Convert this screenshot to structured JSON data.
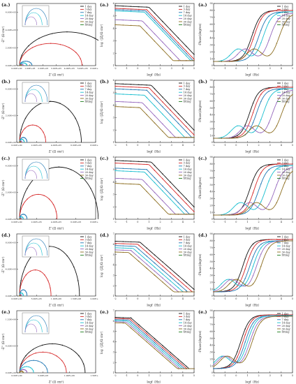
{
  "figure": {
    "legend_entries": [
      "1 day",
      "3 day",
      "7 day",
      "14 day",
      "20 day",
      "30 day",
      "fitting"
    ],
    "series_colors": [
      "#111111",
      "#d62728",
      "#1f77b4",
      "#17becf",
      "#9467bd",
      "#8c6d1f",
      "#1a7a1a"
    ],
    "row_labels": [
      "(a.)",
      "(b.)",
      "(c.)",
      "(d.)",
      "(e.)"
    ],
    "col_xlabels": [
      "Z' (Ω cm²)",
      "logf（Hz）",
      "logf（Hz）"
    ],
    "col_ylabels": [
      "-Z'' (Ω cm²)",
      "log（|Z|/Ω cm²）",
      "-Phase(degree)"
    ]
  },
  "chart_data": [
    {
      "id": "a-nyquist",
      "type": "line",
      "panel_label": "(a.)",
      "xlabel": "Z' (Ω cm²)",
      "ylabel": "-Z'' (Ω cm²)",
      "x_tick_labels": [
        "0.00E+00",
        "1.00E+05",
        "2.00E+05",
        "3.00E+05",
        "4.00E+05",
        "5.00E+05",
        "6.00E+05"
      ],
      "y_tick_labels": [
        "0.00E+00",
        "2.00E+05",
        "4.00E+05",
        "6.00E+05"
      ],
      "xlim": [
        0,
        600000
      ],
      "ylim": [
        0,
        700000
      ],
      "arcs_r": [
        380000,
        250000,
        50000,
        30000,
        15000,
        8000
      ],
      "legend": [
        "1 day",
        "3 day",
        "7 day",
        "14 day",
        "20 day",
        "30 day",
        "fitting"
      ]
    },
    {
      "id": "a-bode",
      "type": "line",
      "panel_label": "(a.)",
      "xlabel": "logf（Hz）",
      "ylabel": "log（|Z|/Ω cm²）",
      "x": [
        -2,
        -1,
        0,
        1,
        2,
        3,
        4,
        5
      ],
      "xlim": [
        -2,
        5
      ],
      "ylim": [
        1,
        6
      ],
      "plateau": [
        5.7,
        5.5,
        5.4,
        5.3,
        4.6,
        4.2
      ],
      "corner": [
        1.0,
        0.8,
        0.7,
        0.6,
        0.4,
        0.2
      ],
      "legend": [
        "1 day",
        "3 day",
        "7 day",
        "14 day",
        "20 day",
        "30 day",
        "fitting"
      ]
    },
    {
      "id": "a-phase",
      "type": "line",
      "panel_label": "(a.)",
      "xlabel": "logf（Hz）",
      "ylabel": "-Phase(degree)",
      "x": [
        -2,
        -1,
        0,
        1,
        2,
        3,
        4,
        5
      ],
      "xlim": [
        -2,
        5
      ],
      "ylim": [
        0,
        90
      ],
      "midpoint": [
        1.4,
        1.6,
        2.0,
        2.4,
        3.0,
        3.8
      ],
      "peak": [
        80,
        80,
        78,
        78,
        76,
        76
      ],
      "legend": [
        "1 day",
        "3 day",
        "7 day",
        "14 day",
        "20 day",
        "30 day",
        "fitting"
      ]
    },
    {
      "id": "b-nyquist",
      "type": "line",
      "panel_label": "(b.)",
      "xlabel": "Z' (Ω cm²)",
      "ylabel": "-Z'' (Ω cm²)",
      "x_tick_labels": [
        "0.00E+00",
        "2.00E+05",
        "4.00E+05",
        "6.00E+05",
        "8.00E+05"
      ],
      "y_tick_labels": [
        "0.00E+00",
        "2.00E+05",
        "4.00E+05"
      ],
      "xlim": [
        0,
        800000
      ],
      "ylim": [
        0,
        500000
      ],
      "arcs_r": [
        330000,
        140000,
        40000,
        25000,
        12000,
        6000
      ],
      "legend": [
        "1 day",
        "3 day",
        "7 day",
        "14 day",
        "20 day",
        "30 day",
        "fitting"
      ]
    },
    {
      "id": "b-bode",
      "type": "line",
      "panel_label": "(b.)",
      "xlabel": "logf（Hz）",
      "ylabel": "log（|Z|/Ω cm²）",
      "x": [
        -2,
        -1,
        0,
        1,
        2,
        3,
        4,
        5
      ],
      "xlim": [
        -2,
        5
      ],
      "ylim": [
        1,
        6
      ],
      "plateau": [
        5.6,
        5.4,
        5.2,
        4.8,
        4.2,
        3.8
      ],
      "corner": [
        1.2,
        1.0,
        0.8,
        0.6,
        0.4,
        0.2
      ],
      "legend": [
        "1 day",
        "3 day",
        "7 day",
        "14 day",
        "20 day",
        "30 day",
        "fitting"
      ]
    },
    {
      "id": "b-phase",
      "type": "line",
      "panel_label": "(b.)",
      "xlabel": "logf（Hz）",
      "ylabel": "-Phase(degree)",
      "x": [
        -2,
        -1,
        0,
        1,
        2,
        3,
        4,
        5
      ],
      "xlim": [
        -2,
        5
      ],
      "ylim": [
        0,
        90
      ],
      "midpoint": [
        1.2,
        1.5,
        1.8,
        2.4,
        3.2,
        4.0
      ],
      "peak": [
        80,
        80,
        78,
        78,
        76,
        74
      ],
      "legend": [
        "1 day",
        "3 day",
        "7 day",
        "14 day",
        "20 day",
        "30 day",
        "fitting"
      ]
    },
    {
      "id": "c-nyquist",
      "type": "line",
      "panel_label": "(c.)",
      "xlabel": "Z' (Ω cm²)",
      "ylabel": "-Z'' (Ω cm²)",
      "x_tick_labels": [
        "0.00E+00",
        "2.00E+05",
        "4.00E+05",
        "6.00E+05",
        "8.00E+05"
      ],
      "y_tick_labels": [
        "0.00E+00",
        "2.00E+05",
        "4.00E+05"
      ],
      "xlim": [
        0,
        800000
      ],
      "ylim": [
        0,
        500000
      ],
      "arcs_r": [
        420000,
        200000,
        40000,
        20000,
        10000,
        5000
      ],
      "legend": [
        "1 day",
        "3 day",
        "7 day",
        "14 day",
        "20 day",
        "30 day",
        "fitting"
      ]
    },
    {
      "id": "c-bode",
      "type": "line",
      "panel_label": "(c.)",
      "xlabel": "logf（Hz）",
      "ylabel": "log（|Z|/Ω cm²）",
      "x": [
        -2,
        -1,
        0,
        1,
        2,
        3,
        4,
        5
      ],
      "xlim": [
        -2,
        5
      ],
      "ylim": [
        1,
        6
      ],
      "plateau": [
        5.6,
        5.4,
        5.0,
        4.8,
        4.2,
        3.8
      ],
      "corner": [
        1.2,
        1.0,
        0.8,
        0.6,
        0.4,
        0.2
      ],
      "legend": [
        "1 day",
        "3 day",
        "7 day",
        "14 day",
        "20 day",
        "30 day",
        "fitting"
      ]
    },
    {
      "id": "c-phase",
      "type": "line",
      "panel_label": "(c.)",
      "xlabel": "logf（Hz）",
      "ylabel": "-Phase(degree)",
      "x": [
        -2,
        -1,
        0,
        1,
        2,
        3,
        4,
        5
      ],
      "xlim": [
        -2,
        5
      ],
      "ylim": [
        0,
        90
      ],
      "midpoint": [
        1.2,
        1.6,
        2.0,
        2.6,
        3.4,
        4.0
      ],
      "peak": [
        80,
        80,
        78,
        78,
        76,
        74
      ],
      "legend": [
        "1 day",
        "3 day",
        "7 day",
        "14 day",
        "20 day",
        "30 day",
        "fitting"
      ]
    },
    {
      "id": "d-nyquist",
      "type": "line",
      "panel_label": "(d.)",
      "xlabel": "Z' (Ω cm²)",
      "ylabel": "-Z'' (Ω cm²)",
      "x_tick_labels": [
        "0.00E+00",
        "5.00E+05",
        "1.00E+06",
        "1.50E+06",
        "2.00E+06"
      ],
      "y_tick_labels": [
        "0.00E+00",
        "4.00E+05",
        "8.00E+05"
      ],
      "xlim": [
        0,
        2000000
      ],
      "ylim": [
        0,
        1000000
      ],
      "arcs_r": [
        800000,
        420000,
        100000,
        50000,
        25000,
        12000
      ],
      "legend": [
        "1 day",
        "3 day",
        "7 day",
        "14 day",
        "20 day",
        "30 day",
        "fitting"
      ]
    },
    {
      "id": "d-bode",
      "type": "line",
      "panel_label": "(d.)",
      "xlabel": "logf（Hz）",
      "ylabel": "log（|Z|/Ω cm²）",
      "x": [
        -2,
        -1,
        0,
        1,
        2,
        3,
        4,
        5
      ],
      "xlim": [
        -2,
        5
      ],
      "ylim": [
        1,
        7
      ],
      "plateau": [
        6.2,
        6.0,
        5.8,
        5.6,
        5.4,
        5.2
      ],
      "corner": [
        0.2,
        0.0,
        -0.2,
        -0.4,
        -0.6,
        -0.8
      ],
      "legend": [
        "1 day",
        "3 day",
        "7 day",
        "14 day",
        "20 day",
        "30 day",
        "fitting"
      ]
    },
    {
      "id": "d-phase",
      "type": "line",
      "panel_label": "(d.)",
      "xlabel": "logf（Hz）",
      "ylabel": "-Phase(degree)",
      "x": [
        -2,
        -1,
        0,
        1,
        2,
        3,
        4,
        5
      ],
      "xlim": [
        -2,
        5
      ],
      "ylim": [
        0,
        90
      ],
      "midpoint": [
        0.6,
        0.9,
        1.2,
        1.5,
        1.8,
        2.2
      ],
      "peak": [
        82,
        82,
        80,
        80,
        80,
        80
      ],
      "legend": [
        "1 day",
        "3 day",
        "7 day",
        "14 day",
        "20 day",
        "30 day",
        "fitting"
      ]
    },
    {
      "id": "e-nyquist",
      "type": "line",
      "panel_label": "(e.)",
      "xlabel": "Z' (Ω cm²)",
      "ylabel": "-Z'' (Ω cm²)",
      "x_tick_labels": [
        "0.00E+00",
        "5.00E+05",
        "1.00E+06",
        "1.50E+06"
      ],
      "y_tick_labels": [
        "0.00E+00",
        "6.00E+05",
        "1.20E+06"
      ],
      "xlim": [
        0,
        1600000
      ],
      "ylim": [
        0,
        1500000
      ],
      "arcs_r": [
        700000,
        500000,
        300000,
        150000,
        80000,
        40000
      ],
      "legend": [
        "1 day",
        "3 day",
        "7 day",
        "14 day",
        "20 day",
        "30 day",
        "fitting"
      ]
    },
    {
      "id": "e-bode",
      "type": "line",
      "panel_label": "(e.)",
      "xlabel": "logf（Hz）",
      "ylabel": "log（|Z|/Ω cm²）",
      "x": [
        -2,
        -1,
        0,
        1,
        2,
        3,
        4,
        5
      ],
      "xlim": [
        -2,
        5
      ],
      "ylim": [
        1,
        7
      ],
      "plateau": [
        6.3,
        6.2,
        6.1,
        6.0,
        5.9,
        5.8
      ],
      "corner": [
        -0.6,
        -0.7,
        -0.8,
        -0.9,
        -1.0,
        -1.1
      ],
      "legend": [
        "1 day",
        "3 day",
        "7 day",
        "14 day",
        "20 day",
        "30 day",
        "fitting"
      ]
    },
    {
      "id": "e-phase",
      "type": "line",
      "panel_label": "(e.)",
      "xlabel": "logf（Hz）",
      "ylabel": "-Phase(degree)",
      "x": [
        -2,
        -1,
        0,
        1,
        2,
        3,
        4,
        5
      ],
      "xlim": [
        -2,
        5
      ],
      "ylim": [
        0,
        90
      ],
      "midpoint": [
        0.4,
        0.6,
        0.8,
        1.0,
        1.2,
        1.4
      ],
      "peak": [
        84,
        84,
        83,
        83,
        82,
        82
      ],
      "legend": [
        "1 day",
        "3 day",
        "7 day",
        "14 day",
        "20 day",
        "30 day",
        "fitting"
      ]
    }
  ]
}
